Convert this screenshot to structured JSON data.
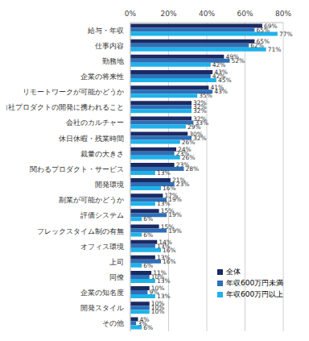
{
  "chart_data": {
    "type": "bar",
    "orientation": "horizontal",
    "categories": [
      "給与・年収",
      "仕事内容",
      "勤務地",
      "企業の将来性",
      "リモートワークが可能かどうか",
      "自社プロダクトの開発に携われること",
      "会社のカルチャー",
      "休日休暇・残業時間",
      "裁量の大きさ",
      "関わるプロダクト・サービス",
      "開発環境",
      "副業が可能かどうか",
      "評価システム",
      "フレックスタイム制の有無",
      "オフィス環境",
      "上司",
      "同僚",
      "企業の知名度",
      "開発スタイル",
      "その他"
    ],
    "series": [
      {
        "name": "全体",
        "color": "#1b2a63",
        "values": [
          69,
          65,
          49,
          43,
          41,
          32,
          32,
          30,
          24,
          23,
          21,
          17,
          15,
          15,
          14,
          13,
          11,
          10,
          10,
          4
        ],
        "value_labels": [
          "69%",
          "65%",
          "49%",
          "43%",
          "41%",
          "32%",
          "32%",
          "30%",
          "24%",
          "23%",
          "21%",
          "17%",
          "15%",
          "15%",
          "14%",
          "13%",
          "11%",
          "10%",
          "10%",
          "4%"
        ]
      },
      {
        "name": "年収600万円未満",
        "color": "#2e6fb7",
        "values": [
          65,
          62,
          52,
          42,
          43,
          32,
          33,
          32,
          23,
          28,
          23,
          19,
          19,
          19,
          13,
          16,
          10,
          9,
          10,
          3
        ],
        "value_labels": [
          "65%",
          "62%",
          "52%",
          "42%",
          "43%",
          "32%",
          "33%",
          "32%",
          "23%",
          "28%",
          "23%",
          "19%",
          "19%",
          "19%",
          "13%",
          "16%",
          "10%",
          "9%",
          "10%",
          "3%"
        ]
      },
      {
        "name": "年収600万円以上",
        "color": "#1fb2ea",
        "values": [
          77,
          71,
          42,
          45,
          35,
          32,
          29,
          26,
          26,
          13,
          16,
          13,
          6,
          6,
          16,
          6,
          13,
          13,
          10,
          6
        ],
        "value_labels": [
          "77%",
          "71%",
          "42%",
          "45%",
          "35%",
          "32%",
          "29%",
          "26%",
          "26%",
          "13%",
          "16%",
          "13%",
          "6%",
          "6%",
          "16%",
          "6%",
          "13%",
          "13%",
          "10%",
          "6%"
        ]
      }
    ],
    "xlim": [
      0,
      80
    ],
    "xticks": [
      {
        "value": 0,
        "label": "0%"
      },
      {
        "value": 20,
        "label": "20%"
      },
      {
        "value": 40,
        "label": "40%"
      },
      {
        "value": 60,
        "label": "60%"
      },
      {
        "value": 80,
        "label": "80%"
      }
    ],
    "grid": true,
    "legend": "bottom right",
    "data_labels": true
  }
}
